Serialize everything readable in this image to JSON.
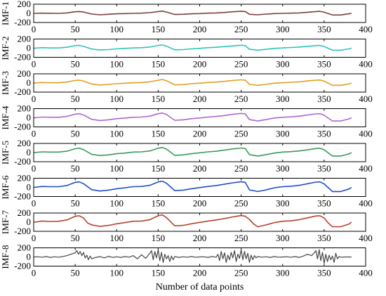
{
  "chart_data": {
    "type": "line",
    "xlabel": "Number of data points",
    "x_ticks": [
      0,
      50,
      100,
      150,
      200,
      250,
      300,
      350,
      400
    ],
    "xlim": [
      0,
      400
    ],
    "grid": false,
    "panels": [
      {
        "label": "IMF-1",
        "ylim": [
          -200,
          200
        ],
        "y_ticks": [
          "200",
          "0",
          "-200"
        ],
        "y_tick_values": [
          200,
          0,
          -200
        ],
        "color": "#7b3f3f",
        "x": [
          1,
          10,
          20,
          30,
          40,
          50,
          55,
          60,
          70,
          80,
          90,
          100,
          110,
          120,
          130,
          140,
          150,
          155,
          160,
          170,
          180,
          190,
          200,
          210,
          220,
          230,
          240,
          250,
          255,
          260,
          270,
          280,
          290,
          300,
          310,
          320,
          330,
          340,
          345,
          350,
          360,
          370,
          380,
          383
        ],
        "values": [
          0,
          5,
          2,
          0,
          10,
          35,
          40,
          30,
          -15,
          -30,
          -20,
          -10,
          -5,
          0,
          5,
          15,
          40,
          50,
          30,
          -25,
          -20,
          -10,
          -5,
          5,
          10,
          20,
          35,
          45,
          40,
          -20,
          -30,
          -15,
          -5,
          0,
          5,
          10,
          25,
          40,
          45,
          25,
          -35,
          -35,
          -10,
          0
        ]
      },
      {
        "label": "IMF-2",
        "ylim": [
          -200,
          200
        ],
        "y_ticks": [
          "200",
          "0",
          "-200"
        ],
        "y_tick_values": [
          200,
          0,
          -200
        ],
        "color": "#2ec4b6",
        "x": [
          1,
          10,
          20,
          30,
          40,
          50,
          55,
          60,
          70,
          80,
          90,
          100,
          110,
          120,
          130,
          140,
          150,
          155,
          160,
          170,
          180,
          190,
          200,
          210,
          220,
          230,
          240,
          250,
          255,
          260,
          270,
          280,
          290,
          300,
          310,
          320,
          330,
          340,
          345,
          350,
          360,
          370,
          380,
          383
        ],
        "values": [
          0,
          10,
          5,
          5,
          20,
          55,
          60,
          40,
          -20,
          -40,
          -30,
          -15,
          -5,
          5,
          10,
          25,
          60,
          70,
          45,
          -35,
          -30,
          -15,
          -5,
          10,
          20,
          35,
          50,
          65,
          55,
          -25,
          -45,
          -25,
          -5,
          5,
          15,
          25,
          40,
          55,
          60,
          35,
          -45,
          -45,
          -15,
          0
        ]
      },
      {
        "label": "IMF-3",
        "ylim": [
          -200,
          200
        ],
        "y_ticks": [
          "200",
          "0",
          "-200"
        ],
        "y_tick_values": [
          200,
          0,
          -200
        ],
        "color": "#e0a020",
        "x": [
          1,
          10,
          20,
          30,
          40,
          50,
          55,
          60,
          70,
          80,
          90,
          100,
          110,
          120,
          130,
          140,
          150,
          155,
          160,
          170,
          180,
          190,
          200,
          210,
          220,
          230,
          240,
          250,
          255,
          260,
          270,
          280,
          290,
          300,
          310,
          320,
          330,
          340,
          345,
          350,
          360,
          370,
          380,
          383
        ],
        "values": [
          0,
          10,
          5,
          5,
          20,
          55,
          60,
          40,
          -25,
          -45,
          -30,
          -15,
          -5,
          5,
          10,
          25,
          60,
          75,
          50,
          -40,
          -35,
          -15,
          -5,
          10,
          20,
          35,
          55,
          70,
          60,
          -30,
          -50,
          -30,
          -5,
          5,
          15,
          25,
          45,
          60,
          65,
          40,
          -50,
          -50,
          -20,
          0
        ]
      },
      {
        "label": "IMF-4",
        "ylim": [
          -200,
          200
        ],
        "y_ticks": [
          "200",
          "0",
          "-200"
        ],
        "y_tick_values": [
          200,
          0,
          -200
        ],
        "color": "#b066cc",
        "x": [
          1,
          10,
          20,
          30,
          40,
          50,
          55,
          60,
          70,
          80,
          90,
          100,
          110,
          120,
          130,
          140,
          150,
          155,
          160,
          170,
          180,
          190,
          200,
          210,
          220,
          230,
          240,
          250,
          255,
          260,
          270,
          280,
          290,
          300,
          310,
          320,
          330,
          340,
          345,
          350,
          360,
          370,
          380,
          383
        ],
        "values": [
          0,
          15,
          10,
          10,
          30,
          80,
          90,
          60,
          -35,
          -60,
          -45,
          -20,
          -5,
          10,
          15,
          35,
          90,
          105,
          70,
          -55,
          -45,
          -20,
          -5,
          15,
          30,
          50,
          75,
          95,
          85,
          -40,
          -70,
          -40,
          -5,
          10,
          20,
          35,
          60,
          85,
          90,
          55,
          -70,
          -70,
          -25,
          0
        ]
      },
      {
        "label": "IMF-5",
        "ylim": [
          -200,
          200
        ],
        "y_ticks": [
          "200",
          "0",
          "-200"
        ],
        "y_tick_values": [
          200,
          0,
          -200
        ],
        "color": "#3a9a5a",
        "x": [
          1,
          10,
          20,
          30,
          40,
          50,
          55,
          60,
          70,
          80,
          90,
          100,
          110,
          120,
          130,
          140,
          150,
          155,
          160,
          170,
          180,
          190,
          200,
          210,
          220,
          230,
          240,
          250,
          255,
          260,
          270,
          280,
          290,
          300,
          310,
          320,
          330,
          340,
          345,
          350,
          360,
          370,
          380,
          383
        ],
        "values": [
          0,
          15,
          10,
          10,
          30,
          85,
          95,
          65,
          -40,
          -65,
          -50,
          -25,
          -10,
          10,
          15,
          35,
          95,
          110,
          75,
          -60,
          -50,
          -25,
          -5,
          15,
          30,
          55,
          80,
          100,
          90,
          -45,
          -75,
          -45,
          -10,
          10,
          20,
          35,
          60,
          90,
          95,
          60,
          -75,
          -75,
          -30,
          0
        ]
      },
      {
        "label": "IMF-6",
        "ylim": [
          -200,
          200
        ],
        "y_ticks": [
          "200",
          "0",
          "-200"
        ],
        "y_tick_values": [
          200,
          0,
          -200
        ],
        "color": "#1f4fc8",
        "x": [
          1,
          10,
          20,
          30,
          40,
          50,
          55,
          60,
          70,
          80,
          90,
          100,
          110,
          120,
          130,
          140,
          150,
          155,
          160,
          170,
          180,
          190,
          200,
          210,
          220,
          230,
          240,
          250,
          255,
          260,
          270,
          280,
          290,
          300,
          310,
          320,
          330,
          340,
          345,
          350,
          360,
          370,
          380,
          383
        ],
        "values": [
          0,
          20,
          15,
          15,
          40,
          110,
          120,
          80,
          -50,
          -80,
          -60,
          -30,
          -10,
          15,
          20,
          45,
          120,
          135,
          90,
          -70,
          -60,
          -30,
          -5,
          20,
          40,
          70,
          100,
          125,
          110,
          -55,
          -90,
          -55,
          -10,
          15,
          25,
          45,
          80,
          115,
          120,
          75,
          -90,
          -90,
          -35,
          0
        ]
      },
      {
        "label": "IMF-7",
        "ylim": [
          -200,
          200
        ],
        "y_ticks": [
          "200",
          "0",
          "-200"
        ],
        "y_tick_values": [
          200,
          0,
          -200
        ],
        "color": "#b8412e",
        "x": [
          1,
          10,
          20,
          30,
          40,
          50,
          55,
          60,
          65,
          70,
          80,
          90,
          100,
          110,
          120,
          130,
          140,
          150,
          155,
          160,
          165,
          170,
          180,
          190,
          200,
          210,
          220,
          230,
          240,
          250,
          255,
          260,
          265,
          270,
          280,
          290,
          300,
          310,
          320,
          330,
          340,
          345,
          350,
          355,
          360,
          370,
          380,
          383
        ],
        "values": [
          0,
          25,
          15,
          20,
          50,
          130,
          140,
          90,
          -20,
          -60,
          -90,
          -70,
          -35,
          -10,
          20,
          25,
          55,
          140,
          160,
          100,
          10,
          -80,
          -70,
          -35,
          -5,
          25,
          50,
          80,
          115,
          145,
          130,
          60,
          -40,
          -100,
          -60,
          -10,
          20,
          30,
          55,
          95,
          135,
          140,
          90,
          -20,
          -100,
          -100,
          -40,
          0
        ]
      },
      {
        "label": "IMF-8",
        "ylim": [
          -200,
          200
        ],
        "y_ticks": [
          "200",
          "0",
          "-200"
        ],
        "y_tick_values": [
          200,
          0,
          -200
        ],
        "color": "#444444",
        "x": [
          1,
          5,
          10,
          15,
          20,
          25,
          30,
          35,
          40,
          45,
          50,
          52,
          54,
          56,
          58,
          60,
          62,
          64,
          66,
          68,
          70,
          75,
          80,
          85,
          90,
          95,
          100,
          105,
          110,
          115,
          120,
          125,
          130,
          135,
          140,
          142,
          144,
          146,
          148,
          150,
          152,
          154,
          156,
          158,
          160,
          162,
          164,
          166,
          168,
          170,
          175,
          180,
          185,
          190,
          195,
          200,
          205,
          210,
          215,
          220,
          222,
          224,
          226,
          228,
          230,
          232,
          234,
          236,
          238,
          240,
          242,
          244,
          246,
          248,
          250,
          252,
          254,
          256,
          258,
          260,
          262,
          264,
          266,
          268,
          270,
          275,
          280,
          285,
          290,
          295,
          300,
          305,
          310,
          315,
          320,
          325,
          330,
          335,
          338,
          340,
          342,
          344,
          346,
          348,
          350,
          352,
          354,
          356,
          358,
          360,
          362,
          364,
          366,
          368,
          370,
          375,
          380,
          383
        ],
        "values": [
          0,
          5,
          -5,
          10,
          -10,
          5,
          -5,
          10,
          30,
          60,
          90,
          140,
          60,
          120,
          30,
          100,
          -20,
          40,
          -60,
          20,
          -40,
          -10,
          10,
          -20,
          15,
          -10,
          5,
          -10,
          10,
          -5,
          30,
          -40,
          50,
          -30,
          80,
          140,
          -60,
          120,
          -20,
          160,
          -80,
          100,
          -120,
          60,
          -40,
          30,
          -100,
          20,
          -60,
          10,
          -10,
          5,
          -5,
          10,
          -5,
          0,
          5,
          -10,
          10,
          -5,
          60,
          -80,
          120,
          -40,
          90,
          -120,
          40,
          -60,
          100,
          -20,
          140,
          -100,
          60,
          -30,
          160,
          -60,
          120,
          -40,
          80,
          -120,
          40,
          -60,
          30,
          -20,
          10,
          -5,
          5,
          -10,
          10,
          -5,
          0,
          5,
          -5,
          10,
          -10,
          20,
          60,
          30,
          90,
          140,
          -40,
          160,
          -80,
          100,
          -140,
          60,
          -100,
          40,
          -60,
          20,
          -120,
          80,
          -40,
          10,
          -5,
          0,
          0,
          0
        ]
      }
    ]
  }
}
